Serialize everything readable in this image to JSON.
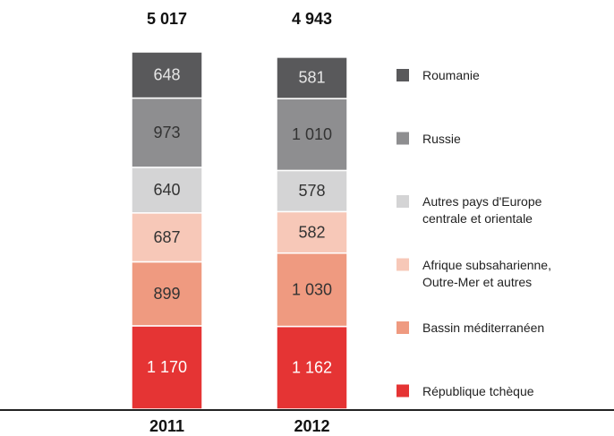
{
  "chart_data": {
    "type": "stacked-bar",
    "categories": [
      "2011",
      "2012"
    ],
    "totals": [
      5017,
      4943
    ],
    "total_labels": [
      "5 017",
      "4 943"
    ],
    "series": [
      {
        "name": "République tchèque",
        "color": "#e53434",
        "label_color": "#ffffff",
        "values": [
          1170,
          1162
        ],
        "value_labels": [
          "1 170",
          "1 162"
        ]
      },
      {
        "name": "Bassin méditerranéen",
        "color": "#ef9a80",
        "label_color": "#333333",
        "values": [
          899,
          1030
        ],
        "value_labels": [
          "899",
          "1 030"
        ]
      },
      {
        "name": "Afrique subsaharienne, Outre-Mer et autres",
        "color": "#f7c8b8",
        "label_color": "#333333",
        "values": [
          687,
          582
        ]
      },
      {
        "name": "Autres pays d'Europe centrale et orientale",
        "color": "#d4d4d5",
        "label_color": "#333333",
        "values": [
          640,
          578
        ]
      },
      {
        "name": "Russie",
        "color": "#8e8e90",
        "label_color": "#333333",
        "values": [
          973,
          1010
        ],
        "value_labels": [
          "973",
          "1 010"
        ]
      },
      {
        "name": "Roumanie",
        "color": "#59595b",
        "label_color": "#e6e6e6",
        "values": [
          648,
          581
        ]
      }
    ]
  }
}
